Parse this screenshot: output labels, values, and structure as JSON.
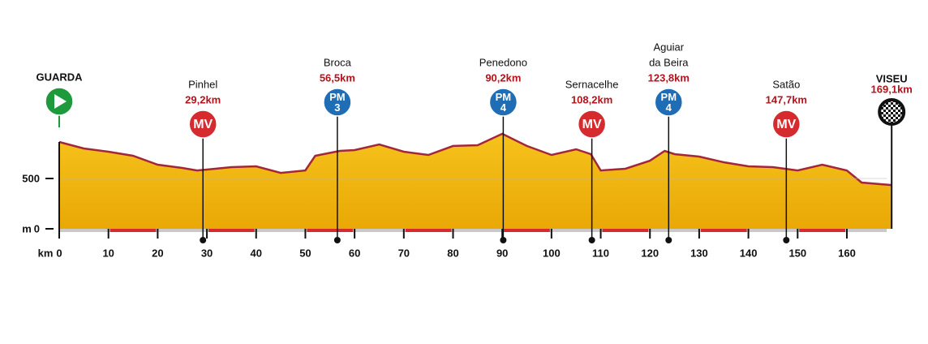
{
  "chart_data": {
    "type": "area",
    "x_label": "km",
    "y_label": "m",
    "color": "#f2b40c",
    "line_color": "#a3263a",
    "x": [
      0,
      5,
      10,
      15,
      20,
      25,
      28,
      30,
      35,
      40,
      45,
      50,
      52,
      57,
      60,
      65,
      70,
      75,
      80,
      85,
      90,
      95,
      100,
      105,
      108,
      110,
      115,
      120,
      123,
      125,
      130,
      135,
      140,
      145,
      150,
      155,
      160,
      163,
      169.1
    ],
    "values": [
      863,
      798,
      766,
      726,
      637,
      605,
      580,
      589,
      613,
      621,
      556,
      580,
      726,
      774,
      782,
      839,
      766,
      734,
      823,
      831,
      944,
      823,
      734,
      790,
      742,
      580,
      597,
      677,
      774,
      742,
      718,
      661,
      621,
      613,
      580,
      637,
      580,
      460,
      435
    ],
    "xlim": [
      0,
      169.1
    ],
    "ylim": [
      0,
      1000
    ],
    "xticks": [
      0,
      10,
      20,
      30,
      40,
      50,
      60,
      70,
      80,
      90,
      100,
      110,
      120,
      130,
      140,
      150,
      160
    ],
    "yticks": [
      0,
      500
    ],
    "markers": [
      {
        "name": [
          "GUARDA"
        ],
        "km": 0,
        "kind": "start",
        "color": "#1e9a3c"
      },
      {
        "name": [
          "Pinhel"
        ],
        "km": 29.2,
        "km_label": "29,2km",
        "kind": "badge",
        "badge": [
          "MV"
        ],
        "color": "#d52b2f"
      },
      {
        "name": [
          "Broca"
        ],
        "km": 56.5,
        "km_label": "56,5km",
        "kind": "badge",
        "badge": [
          "PM",
          "3"
        ],
        "color": "#1f6db5"
      },
      {
        "name": [
          "Penedono"
        ],
        "km": 90.2,
        "km_label": "90,2km",
        "kind": "badge",
        "badge": [
          "PM",
          "4"
        ],
        "color": "#1f6db5"
      },
      {
        "name": [
          "Sernacelhe"
        ],
        "km": 108.2,
        "km_label": "108,2km",
        "kind": "badge",
        "badge": [
          "MV"
        ],
        "color": "#d52b2f"
      },
      {
        "name": [
          "Aguiar",
          "da Beira"
        ],
        "km": 123.8,
        "km_label": "123,8km",
        "kind": "badge",
        "badge": [
          "PM",
          "4"
        ],
        "color": "#1f6db5"
      },
      {
        "name": [
          "Satão"
        ],
        "km": 147.7,
        "km_label": "147,7km",
        "kind": "badge",
        "badge": [
          "MV"
        ],
        "color": "#d52b2f"
      },
      {
        "name": [
          "VISEU"
        ],
        "km": 169.1,
        "km_label": "169,1km",
        "kind": "finish",
        "color": "#111111"
      }
    ]
  }
}
